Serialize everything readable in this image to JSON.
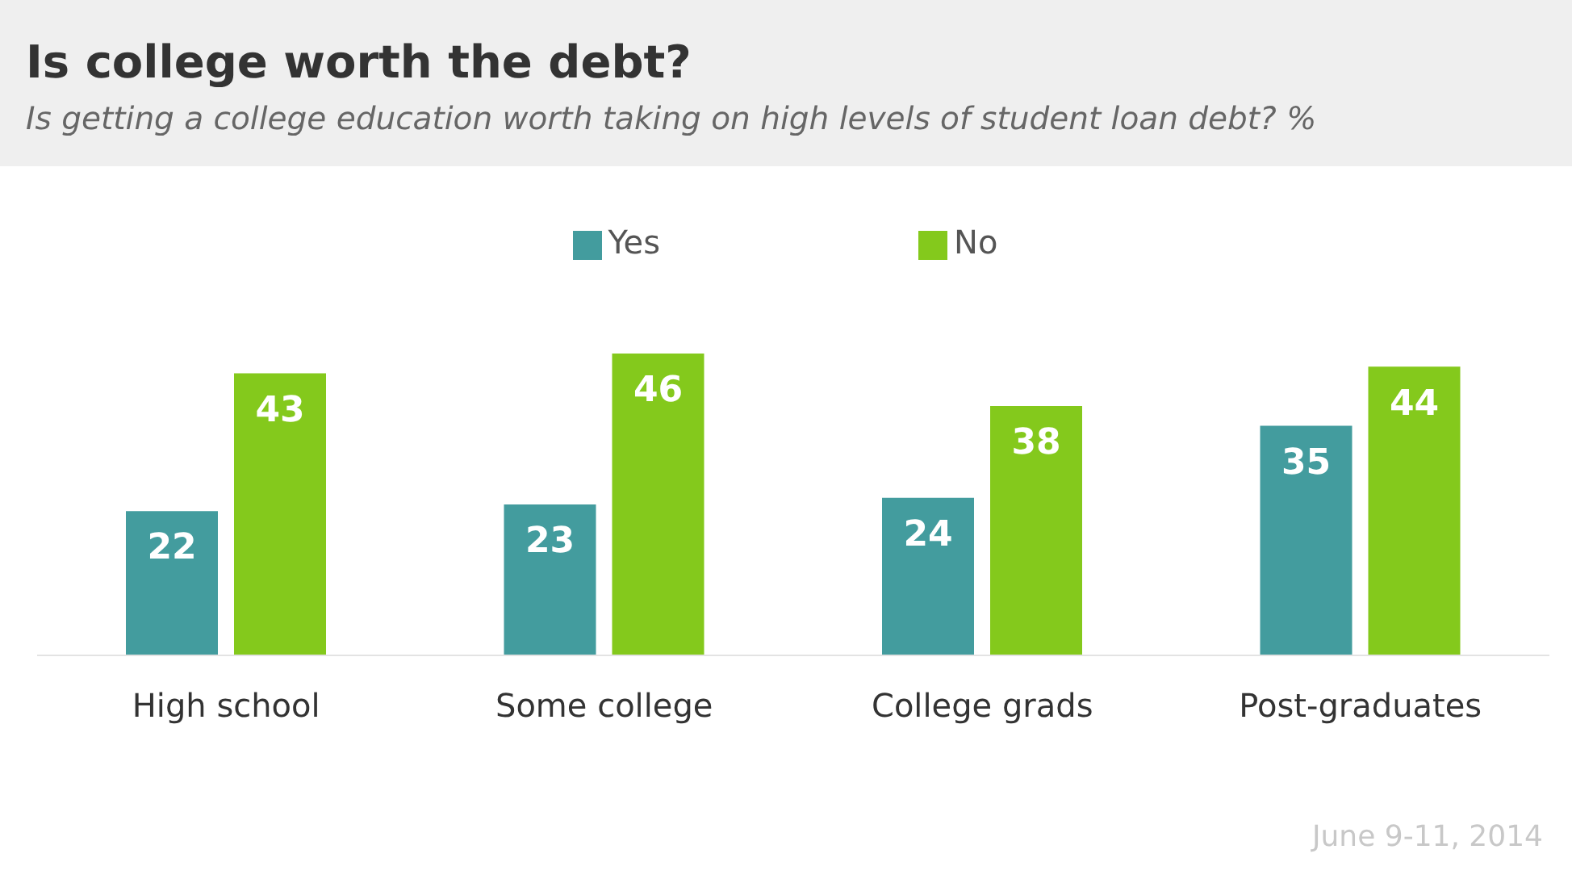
{
  "chart_data": {
    "type": "bar",
    "title": "Is college worth the debt?",
    "subtitle": "Is getting a college education worth taking on high levels of student loan debt? %",
    "categories": [
      "High school",
      "Some college",
      "College grads",
      "Post-graduates"
    ],
    "series": [
      {
        "name": "Yes",
        "color": "#439c9e",
        "values": [
          22,
          23,
          24,
          35
        ]
      },
      {
        "name": "No",
        "color": "#84c91c",
        "values": [
          43,
          46,
          38,
          44
        ]
      }
    ],
    "data_labels": true,
    "legend": "top",
    "grid": false,
    "annotations": [
      "June 9-11, 2014"
    ]
  }
}
